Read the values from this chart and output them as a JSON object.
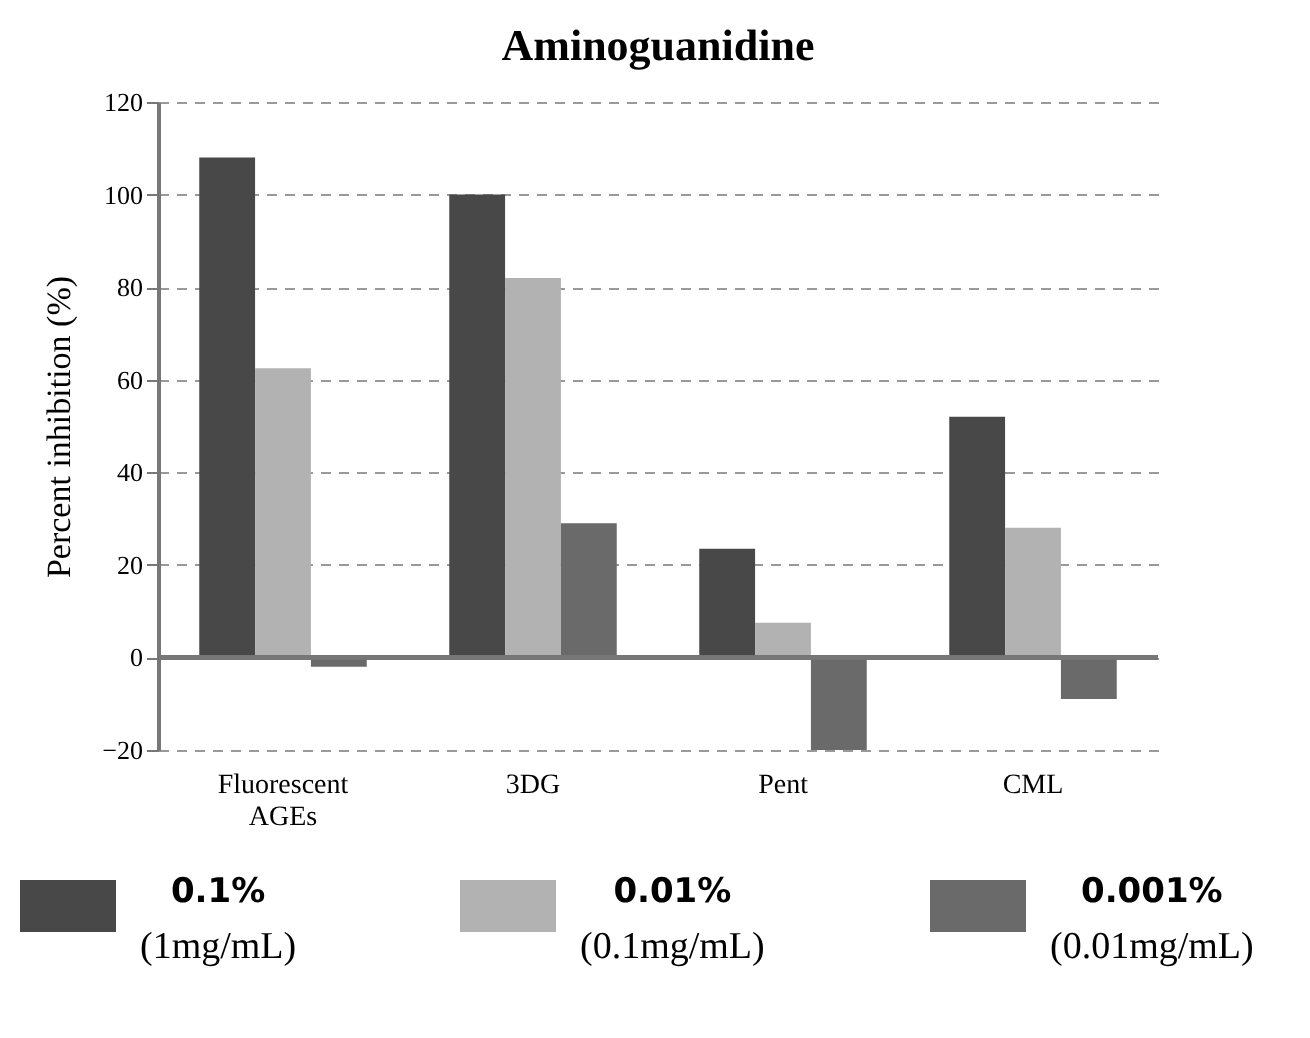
{
  "chart_data": {
    "type": "bar",
    "title": "Aminoguanidine",
    "ylabel": "Percent  inhibition (%)",
    "categories": [
      "Fluorescent AGEs",
      "3DG",
      "Pent",
      "CML"
    ],
    "series": [
      {
        "name": "0.1% (1mg/mL)",
        "color": "#484848",
        "values": [
          108,
          100,
          23.5,
          52
        ]
      },
      {
        "name": "0.01% (0.1mg/mL)",
        "color": "#b2b2b2",
        "values": [
          62.5,
          82,
          7.5,
          28
        ]
      },
      {
        "name": "0.001% (0.01mg/mL)",
        "color": "#6a6a6a",
        "values": [
          -2,
          29,
          -20,
          -9
        ]
      }
    ],
    "ylim": [
      -20,
      120
    ],
    "yticks": [
      -20,
      0,
      20,
      40,
      60,
      80,
      100,
      120
    ],
    "grid": "y",
    "legend": "bottom"
  }
}
